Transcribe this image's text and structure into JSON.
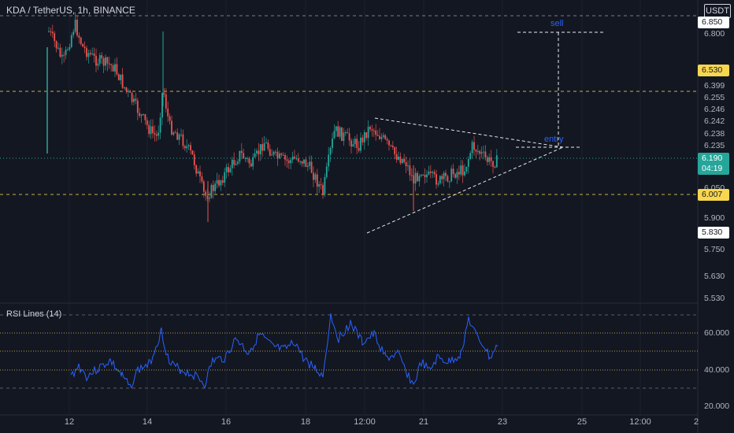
{
  "header": {
    "symbol": "KDA / TetherUS, 1h, BINANCE",
    "currency_button": "USDT"
  },
  "indicator": {
    "label": "RSI Lines (14)"
  },
  "annotations": {
    "sell": "sell",
    "entry": "entry"
  },
  "price_axis": {
    "labels": [
      "6.850",
      "6.800",
      "6.399",
      "6.255",
      "6.246",
      "6.242",
      "6.238",
      "6.235",
      "6.050",
      "5.900",
      "5.750",
      "5.630",
      "5.530"
    ],
    "tags": {
      "top": "6.850",
      "highlight1": "6.530",
      "current_price": "6.190",
      "countdown": "04:19",
      "highlight2": "6.007",
      "level": "5.830"
    }
  },
  "rsi_axis": {
    "labels": [
      "60.000",
      "40.000",
      "20.000"
    ]
  },
  "time_axis": {
    "labels": [
      "12",
      "14",
      "16",
      "18",
      "12:00",
      "21",
      "23",
      "25",
      "12:00",
      "2"
    ]
  },
  "colors": {
    "background": "#131722",
    "up": "#26a69a",
    "down": "#ef5350",
    "candle_wick": "#787b86",
    "rsi_line": "#2962ff",
    "level_yellow": "#f7d74f",
    "current_tag": "#26a69a"
  },
  "chart_data": {
    "type": "candlestick",
    "title": "KDA / TetherUS, 1h, BINANCE",
    "y_range": [
      5.45,
      6.95
    ],
    "horizontal_levels": [
      6.53,
      6.007
    ],
    "current_price": 6.19,
    "rsi": {
      "name": "RSI Lines (14)",
      "levels": [
        70,
        60,
        50,
        40,
        30
      ],
      "y_range": [
        15,
        80
      ]
    }
  }
}
